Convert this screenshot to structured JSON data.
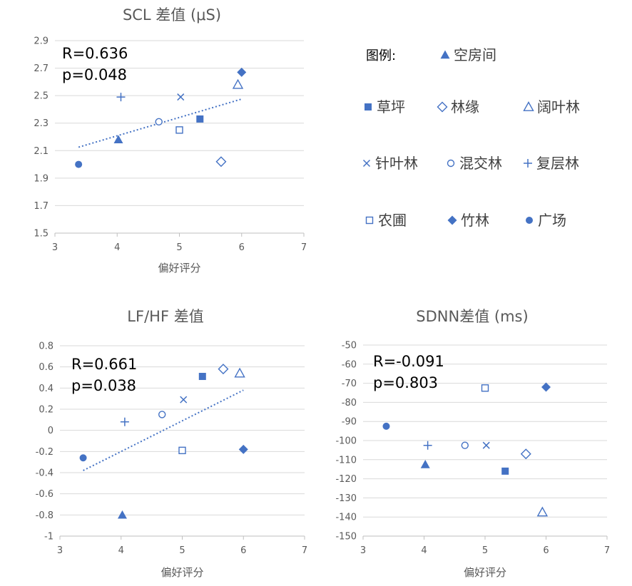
{
  "colors": {
    "marker": "#4472c4",
    "trend": "#4472c4",
    "grid": "#d9d9d9",
    "text": "#595959"
  },
  "legend": {
    "title": "图例:",
    "items": [
      {
        "key": "kongfangjian",
        "label": "空房间",
        "marker": "triangle-filled"
      },
      {
        "key": "caoping",
        "label": "草坪",
        "marker": "square-filled"
      },
      {
        "key": "linyuan",
        "label": "林缘",
        "marker": "diamond-open"
      },
      {
        "key": "kuoyelin",
        "label": "阔叶林",
        "marker": "triangle-open"
      },
      {
        "key": "zhenyelin",
        "label": "针叶林",
        "marker": "x"
      },
      {
        "key": "hunjiaolin",
        "label": "混交林",
        "marker": "circle-open"
      },
      {
        "key": "fucenglin",
        "label": "复层林",
        "marker": "plus"
      },
      {
        "key": "nongpu",
        "label": "农圃",
        "marker": "square-open"
      },
      {
        "key": "zhulin",
        "label": "竹林",
        "marker": "diamond-filled"
      },
      {
        "key": "guangchang",
        "label": "广场",
        "marker": "circle-filled"
      }
    ]
  },
  "chart_data": [
    {
      "type": "scatter",
      "title": "SCL 差值 (μS)",
      "xlabel": "偏好评分",
      "ylabel": "",
      "xlim": [
        3,
        7
      ],
      "xticks": [
        "3",
        "4",
        "5",
        "6",
        "7"
      ],
      "ylim": [
        1.5,
        2.9
      ],
      "yticks": [
        "1.5",
        "1.7",
        "1.9",
        "2.1",
        "2.3",
        "2.5",
        "2.7",
        "2.9"
      ],
      "stats": {
        "r": "R=0.636",
        "p": "p=0.048"
      },
      "trendline": {
        "x": [
          3.38,
          6.0
        ],
        "y": [
          2.125,
          2.475
        ]
      },
      "points": [
        {
          "key": "kongfangjian",
          "x": 4.02,
          "y": 2.18
        },
        {
          "key": "caoping",
          "x": 5.33,
          "y": 2.33
        },
        {
          "key": "linyuan",
          "x": 5.67,
          "y": 2.02
        },
        {
          "key": "kuoyelin",
          "x": 5.94,
          "y": 2.58
        },
        {
          "key": "zhenyelin",
          "x": 5.02,
          "y": 2.49
        },
        {
          "key": "hunjiaolin",
          "x": 4.67,
          "y": 2.31
        },
        {
          "key": "fucenglin",
          "x": 4.06,
          "y": 2.49
        },
        {
          "key": "nongpu",
          "x": 5.0,
          "y": 2.25
        },
        {
          "key": "zhulin",
          "x": 6.0,
          "y": 2.67
        },
        {
          "key": "guangchang",
          "x": 3.38,
          "y": 2.0
        }
      ]
    },
    {
      "type": "scatter",
      "title": "LF/HF 差值",
      "xlabel": "偏好评分",
      "ylabel": "",
      "xlim": [
        3,
        7
      ],
      "xticks": [
        "3",
        "4",
        "5",
        "6",
        "7"
      ],
      "ylim": [
        -1,
        0.8
      ],
      "yticks": [
        "-1",
        "-0.8",
        "-0.6",
        "-0.4",
        "-0.2",
        "0",
        "0.2",
        "0.4",
        "0.6",
        "0.8"
      ],
      "stats": {
        "r": "R=0.661",
        "p": "p=0.038"
      },
      "trendline": {
        "x": [
          3.38,
          6.0
        ],
        "y": [
          -0.38,
          0.38
        ]
      },
      "points": [
        {
          "key": "kongfangjian",
          "x": 4.02,
          "y": -0.8
        },
        {
          "key": "caoping",
          "x": 5.33,
          "y": 0.51
        },
        {
          "key": "linyuan",
          "x": 5.67,
          "y": 0.58
        },
        {
          "key": "kuoyelin",
          "x": 5.94,
          "y": 0.54
        },
        {
          "key": "zhenyelin",
          "x": 5.02,
          "y": 0.29
        },
        {
          "key": "hunjiaolin",
          "x": 4.67,
          "y": 0.15
        },
        {
          "key": "fucenglin",
          "x": 4.06,
          "y": 0.08
        },
        {
          "key": "nongpu",
          "x": 5.0,
          "y": -0.19
        },
        {
          "key": "zhulin",
          "x": 6.0,
          "y": -0.18
        },
        {
          "key": "guangchang",
          "x": 3.38,
          "y": -0.26
        }
      ]
    },
    {
      "type": "scatter",
      "title": "SDNN差值 (ms)",
      "xlabel": "偏好评分",
      "ylabel": "",
      "xlim": [
        3,
        7
      ],
      "xticks": [
        "3",
        "4",
        "5",
        "6",
        "7"
      ],
      "ylim": [
        -150,
        -50
      ],
      "yticks": [
        "-150",
        "-140",
        "-130",
        "-120",
        "-110",
        "-100",
        "-90",
        "-80",
        "-70",
        "-60",
        "-50"
      ],
      "stats": {
        "r": "R=-0.091",
        "p": "p=0.803"
      },
      "trendline": null,
      "points": [
        {
          "key": "kongfangjian",
          "x": 4.02,
          "y": -112.5
        },
        {
          "key": "caoping",
          "x": 5.33,
          "y": -116
        },
        {
          "key": "linyuan",
          "x": 5.67,
          "y": -107
        },
        {
          "key": "kuoyelin",
          "x": 5.94,
          "y": -137.5
        },
        {
          "key": "zhenyelin",
          "x": 5.02,
          "y": -102.5
        },
        {
          "key": "hunjiaolin",
          "x": 4.67,
          "y": -102.5
        },
        {
          "key": "fucenglin",
          "x": 4.06,
          "y": -102.5
        },
        {
          "key": "nongpu",
          "x": 5.0,
          "y": -72.5
        },
        {
          "key": "zhulin",
          "x": 6.0,
          "y": -72
        },
        {
          "key": "guangchang",
          "x": 3.38,
          "y": -92.5
        }
      ]
    }
  ]
}
